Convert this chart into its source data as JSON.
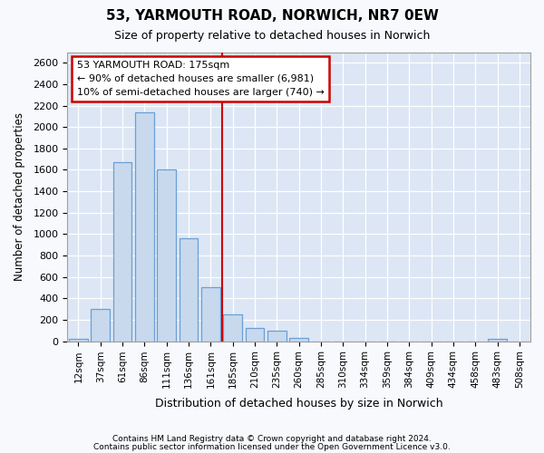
{
  "title": "53, YARMOUTH ROAD, NORWICH, NR7 0EW",
  "subtitle": "Size of property relative to detached houses in Norwich",
  "xlabel": "Distribution of detached houses by size in Norwich",
  "ylabel": "Number of detached properties",
  "categories": [
    "12sqm",
    "37sqm",
    "61sqm",
    "86sqm",
    "111sqm",
    "136sqm",
    "161sqm",
    "185sqm",
    "210sqm",
    "235sqm",
    "260sqm",
    "285sqm",
    "310sqm",
    "334sqm",
    "359sqm",
    "384sqm",
    "409sqm",
    "434sqm",
    "458sqm",
    "483sqm",
    "508sqm"
  ],
  "values": [
    22,
    300,
    1670,
    2140,
    1600,
    965,
    505,
    250,
    125,
    100,
    30,
    0,
    0,
    0,
    0,
    0,
    0,
    0,
    0,
    22,
    0
  ],
  "bar_color": "#c8d9ee",
  "bar_edge_color": "#6b9fd4",
  "plot_bg_color": "#dce6f5",
  "fig_bg_color": "#f7f9fc",
  "grid_color": "#ffffff",
  "vline_color": "#cc0000",
  "vline_x_index": 7,
  "annotation_text": "53 YARMOUTH ROAD: 175sqm\n← 90% of detached houses are smaller (6,981)\n10% of semi-detached houses are larger (740) →",
  "annotation_box_facecolor": "white",
  "annotation_box_edgecolor": "#cc0000",
  "footer1": "Contains HM Land Registry data © Crown copyright and database right 2024.",
  "footer2": "Contains public sector information licensed under the Open Government Licence v3.0.",
  "ylim": [
    0,
    2700
  ],
  "yticks": [
    0,
    200,
    400,
    600,
    800,
    1000,
    1200,
    1400,
    1600,
    1800,
    2000,
    2200,
    2400,
    2600
  ]
}
